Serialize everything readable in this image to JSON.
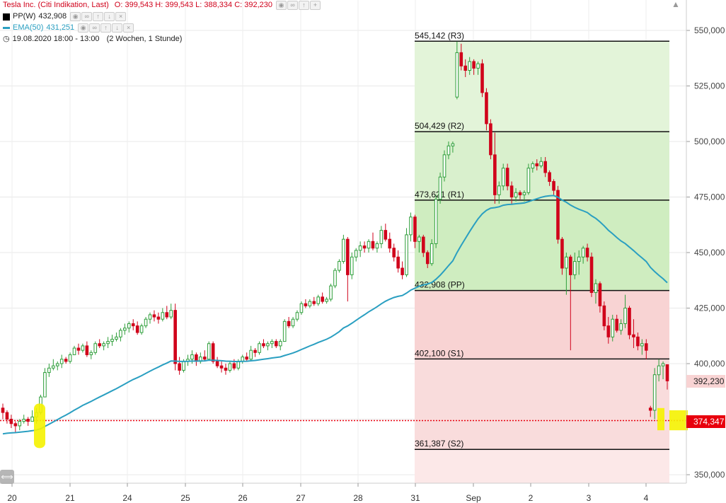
{
  "legend": {
    "instrument": "Tesla Inc. (Citi Indikation, Last)",
    "ohlc": "O: 399,543  H: 399,543  L: 388,334  C: 392,230",
    "pp_label": "PP(W)",
    "pp_value": "432,908",
    "ema_label": "EMA(50)",
    "ema_value": "431,251",
    "period": "19.08.2020 18:00 - 13:00",
    "range": "(2 Wochen, 1 Stunde)"
  },
  "price_tags": {
    "last": "392,230",
    "marker": "374,347"
  },
  "colors": {
    "up": "#2e9e3a",
    "down": "#d0021b",
    "ema": "#2a9fc1",
    "zone_up": "#cfedc0",
    "zone_up_high": "#e3f4d9",
    "zone_down": "#f8d3d3",
    "zone_down_low": "#fce8e8",
    "highlight": "#f5f200"
  },
  "chart_data": {
    "type": "candlestick",
    "ylim": [
      345000,
      555000
    ],
    "y_ticks": [
      "550,000",
      "525,000",
      "500,000",
      "475,000",
      "450,000",
      "425,000",
      "400,000",
      "375,000",
      "350,000"
    ],
    "y_tick_values": [
      550000,
      525000,
      500000,
      475000,
      450000,
      425000,
      400000,
      375000,
      350000
    ],
    "x_ticks": [
      "20",
      "21",
      "24",
      "25",
      "26",
      "27",
      "28",
      "31",
      "Sep",
      "2",
      "3",
      "4"
    ],
    "pivot_levels": [
      {
        "label": "545,142 (R3)",
        "value": 545142
      },
      {
        "label": "504,429 (R2)",
        "value": 504429
      },
      {
        "label": "473,621 (R1)",
        "value": 473621
      },
      {
        "label": "432,908 (PP)",
        "value": 432908
      },
      {
        "label": "402,100 (S1)",
        "value": 402100
      },
      {
        "label": "361,387 (S2)",
        "value": 361387
      }
    ],
    "marker_level": 374347,
    "last_close": 392230,
    "ohlc": [
      [
        380.0,
        382.0,
        375.0,
        378.0
      ],
      [
        378.0,
        379.0,
        373.0,
        375.0
      ],
      [
        375.0,
        377.0,
        371.0,
        373.0
      ],
      [
        373.0,
        374.0,
        369.0,
        372.0
      ],
      [
        372.0,
        375.0,
        370.0,
        374.0
      ],
      [
        374.0,
        377.0,
        373.0,
        375.0
      ],
      [
        375.0,
        376.0,
        372.0,
        374.0
      ],
      [
        374.0,
        379.0,
        374.0,
        376.0
      ],
      [
        376.0,
        380.0,
        373.0,
        378.0
      ],
      [
        378.0,
        386.0,
        377.0,
        385.0
      ],
      [
        385.0,
        398.0,
        385.0,
        396.0
      ],
      [
        396.0,
        400.0,
        394.0,
        398.0
      ],
      [
        398.0,
        402.0,
        397.0,
        399.0
      ],
      [
        399.0,
        401.0,
        397.0,
        400.0
      ],
      [
        400.0,
        404.0,
        398.0,
        402.0
      ],
      [
        402.0,
        403.0,
        400.0,
        401.0
      ],
      [
        401.0,
        405.0,
        400.0,
        404.0
      ],
      [
        404.0,
        408.0,
        405.0,
        407.0
      ],
      [
        407.0,
        409.0,
        404.0,
        406.0
      ],
      [
        406.0,
        409.0,
        405.0,
        408.0
      ],
      [
        408.0,
        410.0,
        403.0,
        404.0
      ],
      [
        404.0,
        406.0,
        402.0,
        405.0
      ],
      [
        405.0,
        410.0,
        404.0,
        409.0
      ],
      [
        409.0,
        411.0,
        407.0,
        408.0
      ],
      [
        408.0,
        410.0,
        406.0,
        409.0
      ],
      [
        409.0,
        412.0,
        407.0,
        410.0
      ],
      [
        410.0,
        413.0,
        408.0,
        411.0
      ],
      [
        411.0,
        414.0,
        410.0,
        412.0
      ],
      [
        412.0,
        416.0,
        410.0,
        415.0
      ],
      [
        415.0,
        418.0,
        413.0,
        416.0
      ],
      [
        416.0,
        419.0,
        414.0,
        418.0
      ],
      [
        418.0,
        420.0,
        415.0,
        417.0
      ],
      [
        417.0,
        419.0,
        413.0,
        414.0
      ],
      [
        414.0,
        418.0,
        413.0,
        417.0
      ],
      [
        417.0,
        421.0,
        416.0,
        420.0
      ],
      [
        420.0,
        423.0,
        418.0,
        422.0
      ],
      [
        422.0,
        424.0,
        419.0,
        421.0
      ],
      [
        421.0,
        423.0,
        418.0,
        420.0
      ],
      [
        420.0,
        425.0,
        419.0,
        423.0
      ],
      [
        423.0,
        426.0,
        420.0,
        421.0
      ],
      [
        421.0,
        427.0,
        420.0,
        424.0
      ],
      [
        424.0,
        427.0,
        397.0,
        400.0
      ],
      [
        400.0,
        403.0,
        395.0,
        397.0
      ],
      [
        397.0,
        402.0,
        396.0,
        401.0
      ],
      [
        401.0,
        404.0,
        399.0,
        402.0
      ],
      [
        402.0,
        406.0,
        400.0,
        404.0
      ],
      [
        404.0,
        405.0,
        399.0,
        401.0
      ],
      [
        401.0,
        405.0,
        400.0,
        403.0
      ],
      [
        403.0,
        406.0,
        401.0,
        402.0
      ],
      [
        402.0,
        410.0,
        402.0,
        409.0
      ],
      [
        409.0,
        410.0,
        400.0,
        401.0
      ],
      [
        401.0,
        403.0,
        398.0,
        399.0
      ],
      [
        399.0,
        401.0,
        396.0,
        398.0
      ],
      [
        398.0,
        400.0,
        395.0,
        397.0
      ],
      [
        397.0,
        401.0,
        396.0,
        400.0
      ],
      [
        400.0,
        402.0,
        397.0,
        398.0
      ],
      [
        398.0,
        402.0,
        397.0,
        401.0
      ],
      [
        401.0,
        404.0,
        400.0,
        403.0
      ],
      [
        403.0,
        405.0,
        401.0,
        402.0
      ],
      [
        402.0,
        408.0,
        401.0,
        406.0
      ],
      [
        406.0,
        407.0,
        403.0,
        405.0
      ],
      [
        405.0,
        410.0,
        404.0,
        409.0
      ],
      [
        409.0,
        411.0,
        407.0,
        408.0
      ],
      [
        408.0,
        410.0,
        406.0,
        409.0
      ],
      [
        409.0,
        411.0,
        407.0,
        410.0
      ],
      [
        410.0,
        411.0,
        407.0,
        408.0
      ],
      [
        408.0,
        411.0,
        406.0,
        410.0
      ],
      [
        410.0,
        420.0,
        410.0,
        419.0
      ],
      [
        419.0,
        421.0,
        416.0,
        417.0
      ],
      [
        417.0,
        421.0,
        416.0,
        420.0
      ],
      [
        420.0,
        424.0,
        419.0,
        423.0
      ],
      [
        423.0,
        428.0,
        422.0,
        427.0
      ],
      [
        427.0,
        429.0,
        425.0,
        426.0
      ],
      [
        426.0,
        429.0,
        425.0,
        428.0
      ],
      [
        428.0,
        430.0,
        426.0,
        427.0
      ],
      [
        427.0,
        431.0,
        426.0,
        430.0
      ],
      [
        430.0,
        432.0,
        427.0,
        428.0
      ],
      [
        428.0,
        430.0,
        427.0,
        429.0
      ],
      [
        429.0,
        436.0,
        428.0,
        435.0
      ],
      [
        435.0,
        443.0,
        434.0,
        442.0
      ],
      [
        442.0,
        447.0,
        441.0,
        446.0
      ],
      [
        446.0,
        458.0,
        445.0,
        456.0
      ],
      [
        456.0,
        457.0,
        428.0,
        440.0
      ],
      [
        440.0,
        450.0,
        438.0,
        448.0
      ],
      [
        448.0,
        452.0,
        446.0,
        451.0
      ],
      [
        451.0,
        455.0,
        448.0,
        453.0
      ],
      [
        453.0,
        455.0,
        450.0,
        452.0
      ],
      [
        452.0,
        456.0,
        450.0,
        455.0
      ],
      [
        455.0,
        459.0,
        451.0,
        452.0
      ],
      [
        452.0,
        455.0,
        450.0,
        454.0
      ],
      [
        454.0,
        462.0,
        452.0,
        460.0
      ],
      [
        460.0,
        463.0,
        455.0,
        456.0
      ],
      [
        456.0,
        459.0,
        450.0,
        452.0
      ],
      [
        452.0,
        454.0,
        446.0,
        448.0
      ],
      [
        448.0,
        451.0,
        441.0,
        443.0
      ],
      [
        443.0,
        446.0,
        438.0,
        440.0
      ],
      [
        440.0,
        461.0,
        439.0,
        458.0
      ],
      [
        458.0,
        468.0,
        455.0,
        466.0
      ],
      [
        466.0,
        467.0,
        452.0,
        455.0
      ],
      [
        455.0,
        458.0,
        450.0,
        457.0
      ],
      [
        457.0,
        458.0,
        448.0,
        450.0
      ],
      [
        450.0,
        451.0,
        443.0,
        445.0
      ],
      [
        445.0,
        456.0,
        444.0,
        454.0
      ],
      [
        454.0,
        476.0,
        452.0,
        474.0
      ],
      [
        474.0,
        486.0,
        472.0,
        484.0
      ],
      [
        484.0,
        496.0,
        482.0,
        494.0
      ],
      [
        494.0,
        500.0,
        492.0,
        498.0
      ],
      [
        498.0,
        500.0,
        495.0,
        499.0
      ],
      [
        520.0,
        545.0,
        519.0,
        540.0
      ],
      [
        540.0,
        544.0,
        532.0,
        534.0
      ],
      [
        534.0,
        537.0,
        529.0,
        532.0
      ],
      [
        532.0,
        538.0,
        530.0,
        536.0
      ],
      [
        536.0,
        537.0,
        530.0,
        533.0
      ],
      [
        533.0,
        536.0,
        530.0,
        535.0
      ],
      [
        535.0,
        537.0,
        520.0,
        522.0
      ],
      [
        522.0,
        524.0,
        505.0,
        508.0
      ],
      [
        508.0,
        510.0,
        492.0,
        494.0
      ],
      [
        494.0,
        504.0,
        472.0,
        476.0
      ],
      [
        476.0,
        482.0,
        472.0,
        480.0
      ],
      [
        480.0,
        490.0,
        478.0,
        488.0
      ],
      [
        488.0,
        490.0,
        478.0,
        480.0
      ],
      [
        480.0,
        482.0,
        472.0,
        475.0
      ],
      [
        475.0,
        479.0,
        473.0,
        477.0
      ],
      [
        477.0,
        478.0,
        474.0,
        476.0
      ],
      [
        476.0,
        478.0,
        473.0,
        477.0
      ],
      [
        477.0,
        490.0,
        476.0,
        488.0
      ],
      [
        488.0,
        491.0,
        486.0,
        490.0
      ],
      [
        490.0,
        492.0,
        487.0,
        489.0
      ],
      [
        489.0,
        493.0,
        488.0,
        491.0
      ],
      [
        491.0,
        493.0,
        484.0,
        486.0
      ],
      [
        486.0,
        487.0,
        480.0,
        482.0
      ],
      [
        482.0,
        483.0,
        476.0,
        478.0
      ],
      [
        478.0,
        480.0,
        454.0,
        456.0
      ],
      [
        456.0,
        457.0,
        440.0,
        443.0
      ],
      [
        443.0,
        450.0,
        431.0,
        448.0
      ],
      [
        448.0,
        449.0,
        406.0,
        440.0
      ],
      [
        440.0,
        450.0,
        438.0,
        446.0
      ],
      [
        446.0,
        451.0,
        440.0,
        448.0
      ],
      [
        448.0,
        453.0,
        445.0,
        452.0
      ],
      [
        452.0,
        454.0,
        446.0,
        448.0
      ],
      [
        448.0,
        450.0,
        430.0,
        432.0
      ],
      [
        432.0,
        438.0,
        427.0,
        436.0
      ],
      [
        436.0,
        437.0,
        423.0,
        426.0
      ],
      [
        426.0,
        428.0,
        415.0,
        417.0
      ],
      [
        417.0,
        421.0,
        409.0,
        412.0
      ],
      [
        412.0,
        422.0,
        410.0,
        420.0
      ],
      [
        420.0,
        422.0,
        414.0,
        415.0
      ],
      [
        415.0,
        420.0,
        413.0,
        418.0
      ],
      [
        418.0,
        431.0,
        416.0,
        425.0
      ],
      [
        425.0,
        426.0,
        411.0,
        413.0
      ],
      [
        413.0,
        420.0,
        407.0,
        412.0
      ],
      [
        412.0,
        414.0,
        406.0,
        408.0
      ],
      [
        408.0,
        411.0,
        404.0,
        409.0
      ],
      [
        409.0,
        411.0,
        402.0,
        406.0
      ],
      [
        380.0,
        381.0,
        376.0,
        379.0
      ],
      [
        379.0,
        398.0,
        375.0,
        395.0
      ],
      [
        395.0,
        402.0,
        392.0,
        399.0
      ],
      [
        399.0,
        401.0,
        393.0,
        400.0
      ],
      [
        399.543,
        399.543,
        388.334,
        392.23
      ]
    ]
  }
}
